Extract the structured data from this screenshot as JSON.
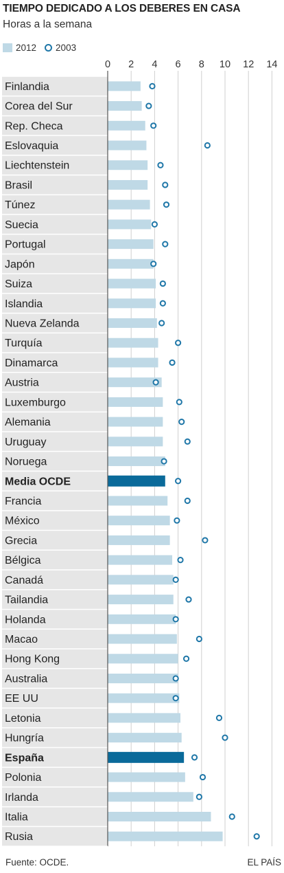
{
  "header": {
    "title": "TIEMPO DEDICADO A LOS DEBERES EN CASA",
    "subtitle": "Horas a la semana"
  },
  "legend": {
    "series_2012": "2012",
    "series_2003": "2003"
  },
  "footer": {
    "source": "Fuente: OCDE.",
    "credit": "EL PAÍS"
  },
  "colors": {
    "bar_2012": "#bfd9e6",
    "bar_highlight": "#0a6a9a",
    "dot_2003": "#1f77a8",
    "label_bg": "#e6e6e6"
  },
  "chart_data": {
    "type": "bar",
    "orientation": "horizontal",
    "xlim": [
      0,
      14
    ],
    "xticks": [
      0,
      2,
      4,
      6,
      8,
      10,
      12,
      14
    ],
    "categories": [
      "Finlandia",
      "Corea del Sur",
      "Rep. Checa",
      "Eslovaquia",
      "Liechtenstein",
      "Brasil",
      "Túnez",
      "Suecia",
      "Portugal",
      "Japón",
      "Suiza",
      "Islandia",
      "Nueva Zelanda",
      "Turquía",
      "Dinamarca",
      "Austria",
      "Luxemburgo",
      "Alemania",
      "Uruguay",
      "Noruega",
      "Media OCDE",
      "Francia",
      "México",
      "Grecia",
      "Bélgica",
      "Canadá",
      "Tailandia",
      "Holanda",
      "Macao",
      "Hong Kong",
      "Australia",
      "EE UU",
      "Letonia",
      "Hungría",
      "España",
      "Polonia",
      "Irlanda",
      "Italia",
      "Rusia"
    ],
    "highlighted": [
      "Media OCDE",
      "España"
    ],
    "series": [
      {
        "name": "2012",
        "style": "bar",
        "values": [
          2.8,
          2.9,
          3.2,
          3.3,
          3.4,
          3.4,
          3.6,
          3.7,
          3.9,
          3.9,
          4.1,
          4.1,
          4.2,
          4.3,
          4.3,
          4.6,
          4.7,
          4.7,
          4.7,
          4.9,
          4.9,
          5.1,
          5.3,
          5.3,
          5.5,
          5.6,
          5.6,
          5.8,
          5.9,
          6.0,
          6.0,
          6.1,
          6.2,
          6.3,
          6.5,
          6.6,
          7.3,
          8.8,
          9.8
        ]
      },
      {
        "name": "2003",
        "style": "dot",
        "values": [
          3.8,
          3.5,
          3.9,
          8.5,
          4.5,
          4.9,
          5.0,
          4.0,
          4.9,
          3.9,
          4.7,
          4.7,
          4.6,
          6.0,
          5.5,
          4.1,
          6.1,
          6.3,
          6.8,
          4.8,
          6.0,
          6.8,
          5.9,
          8.3,
          6.2,
          5.8,
          6.9,
          5.8,
          7.8,
          6.7,
          5.8,
          5.8,
          9.5,
          10.0,
          7.4,
          8.1,
          7.8,
          10.6,
          12.7
        ]
      }
    ]
  }
}
